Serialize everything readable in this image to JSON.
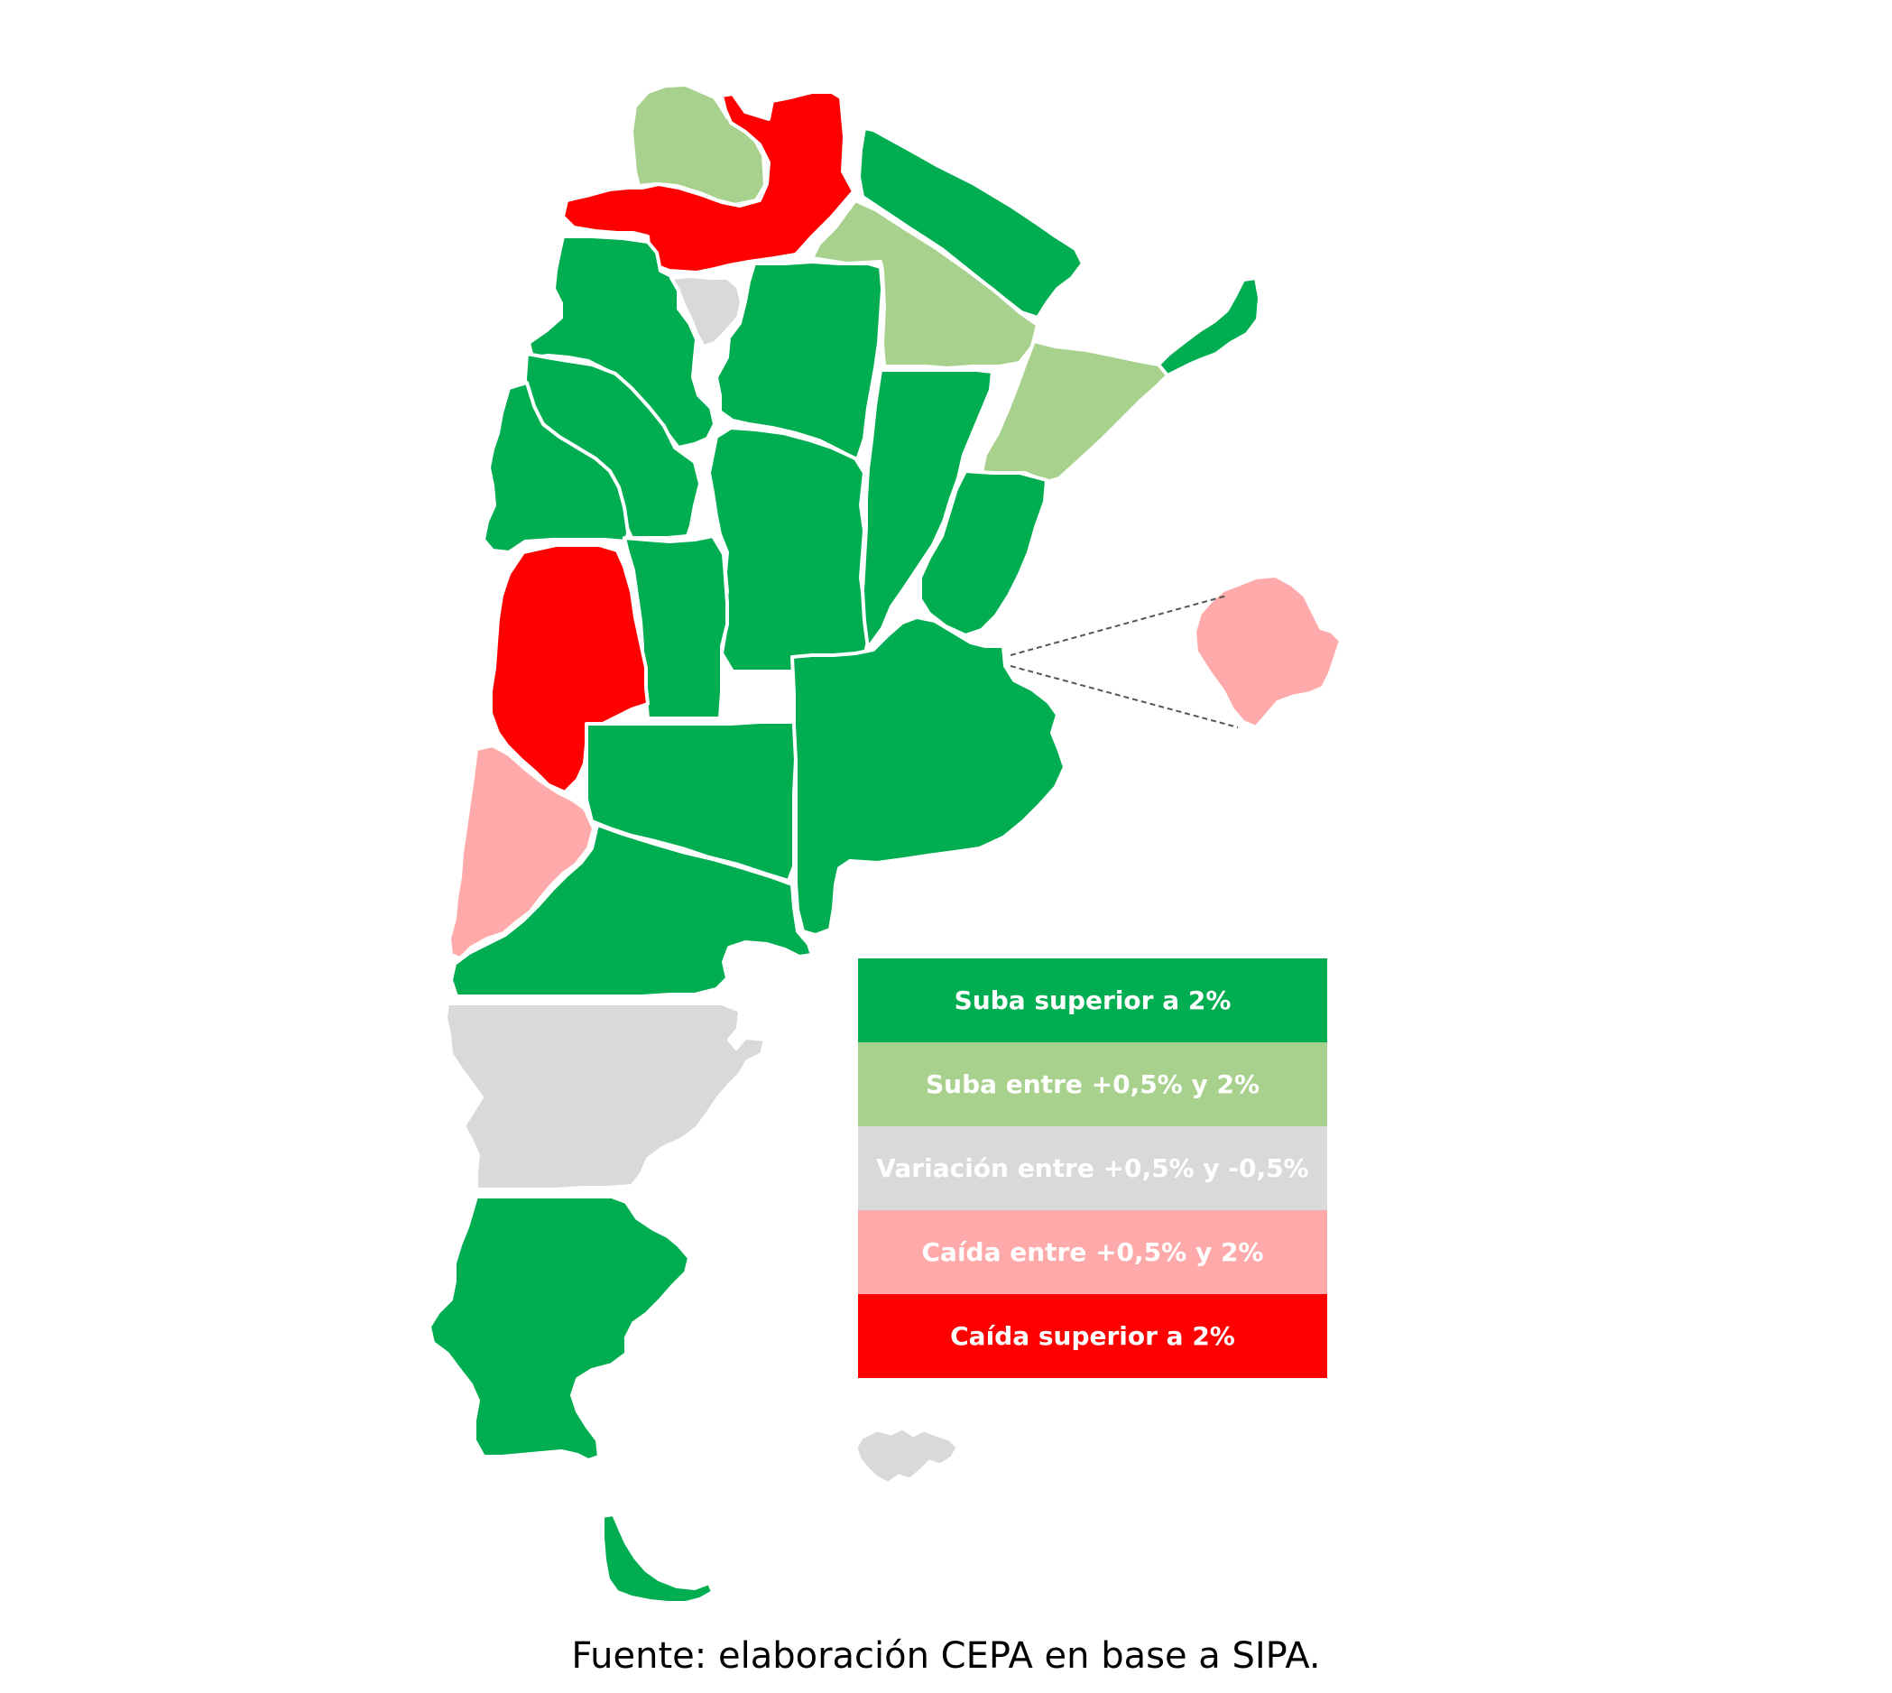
{
  "colors": {
    "suba_superior": "#00ad50",
    "suba_entre": "#a9d18e",
    "variacion": "#d9d9d9",
    "caida_entre": "#ffaaaa",
    "caida_superior": "#ff0000"
  },
  "legend": [
    {
      "label": "Suba superior a 2%",
      "color": "#00ad50"
    },
    {
      "label": "Suba entre +0,5% y 2%",
      "color": "#a9d18e"
    },
    {
      "label": "Variación entre +0,5% y -0,5%",
      "color": "#d9d9d9"
    },
    {
      "label": "Caída entre +0,5% y 2%",
      "color": "#ffaaaa"
    },
    {
      "label": "Caída superior a 2%",
      "color": "#ff0000"
    }
  ],
  "provinces": [
    {
      "id": "jujuy",
      "category": "suba_entre"
    },
    {
      "id": "salta",
      "category": "caida_superior"
    },
    {
      "id": "formosa",
      "category": "suba_superior"
    },
    {
      "id": "chaco",
      "category": "suba_entre"
    },
    {
      "id": "misiones",
      "category": "suba_superior"
    },
    {
      "id": "corrientes",
      "category": "suba_entre"
    },
    {
      "id": "catamarca",
      "category": "suba_superior"
    },
    {
      "id": "tucuman",
      "category": "variacion"
    },
    {
      "id": "santiago-del-estero",
      "category": "suba_superior"
    },
    {
      "id": "la-rioja",
      "category": "suba_superior"
    },
    {
      "id": "san-juan",
      "category": "suba_superior"
    },
    {
      "id": "cordoba",
      "category": "suba_superior"
    },
    {
      "id": "santa-fe",
      "category": "suba_superior"
    },
    {
      "id": "entre-rios",
      "category": "suba_superior"
    },
    {
      "id": "san-luis",
      "category": "suba_superior"
    },
    {
      "id": "mendoza",
      "category": "caida_superior"
    },
    {
      "id": "la-pampa",
      "category": "suba_superior"
    },
    {
      "id": "buenos-aires",
      "category": "suba_superior"
    },
    {
      "id": "neuquen",
      "category": "caida_entre"
    },
    {
      "id": "rio-negro",
      "category": "suba_superior"
    },
    {
      "id": "chubut",
      "category": "variacion"
    },
    {
      "id": "santa-cruz",
      "category": "suba_superior"
    },
    {
      "id": "tierra-del-fuego",
      "category": "suba_superior"
    },
    {
      "id": "caba",
      "category": "caida_entre"
    },
    {
      "id": "islas-malvinas",
      "category": "variacion"
    }
  ],
  "caption": "Fuente: elaboración CEPA en base a SIPA."
}
